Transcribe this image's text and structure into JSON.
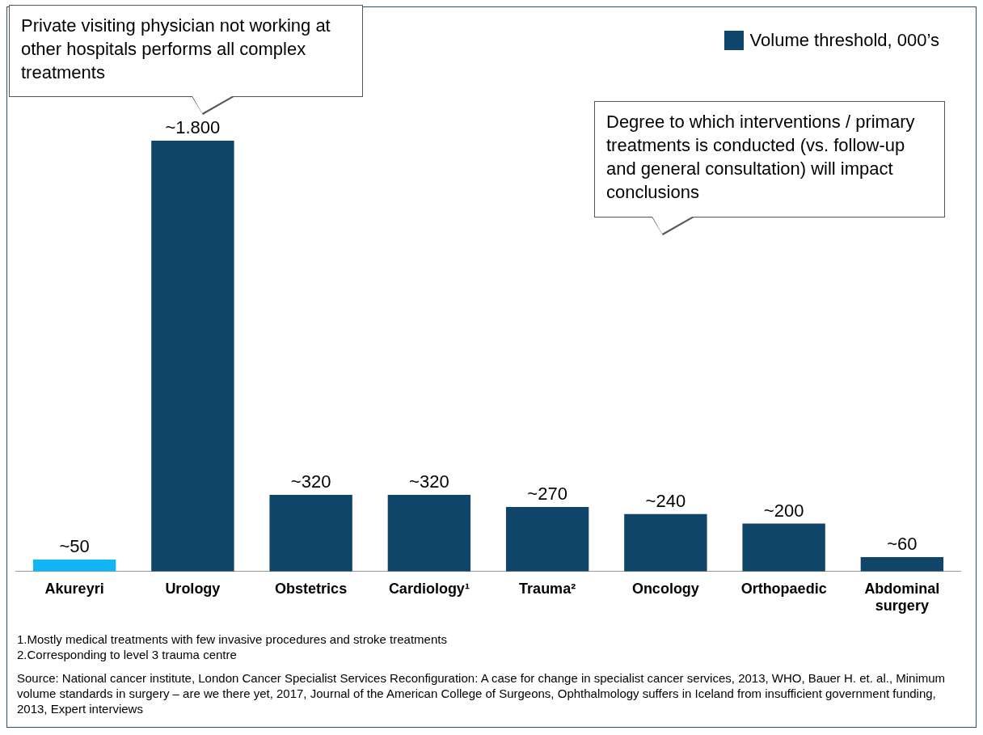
{
  "chart_data": {
    "type": "bar",
    "categories": [
      "Akureyri",
      "Urology",
      "Obstetrics",
      "Cardiology¹",
      "Trauma²",
      "Oncology",
      "Orthopaedic",
      "Abdominal surgery"
    ],
    "series": [
      {
        "name": "Volume threshold, 000’s",
        "color": "#0f4568",
        "colors": [
          "#12b5f5",
          "#0f4568",
          "#0f4568",
          "#0f4568",
          "#0f4568",
          "#0f4568",
          "#0f4568",
          "#0f4568"
        ],
        "values": [
          50,
          1800,
          320,
          320,
          270,
          240,
          200,
          60
        ],
        "value_labels": [
          "~50",
          "~1.800",
          "~320",
          "~320",
          "~270",
          "~240",
          "~200",
          "~60"
        ]
      }
    ],
    "legend": "top right",
    "grid": false,
    "tick_labels": "x",
    "annotations": [
      "Private visiting physician not working at other hospitals performs all complex treatments",
      "Degree to which interventions / primary treatments is conducted (vs. follow-up and general consultation) will impact conclusions",
      "1.Mostly medical treatments with few invasive procedures and stroke treatments",
      "2.Corresponding to level 3 trauma centre",
      "Source: National cancer institute, London Cancer Specialist Services Reconfiguration: A case for change in specialist cancer services, 2013, WHO, Bauer H. et. al., Minimum volume standards in surgery – are we there yet, 2017, Journal of the American College of Surgeons, Ophthalmology suffers in Iceland from insufficient government funding, 2013,  Expert interviews"
    ]
  }
}
